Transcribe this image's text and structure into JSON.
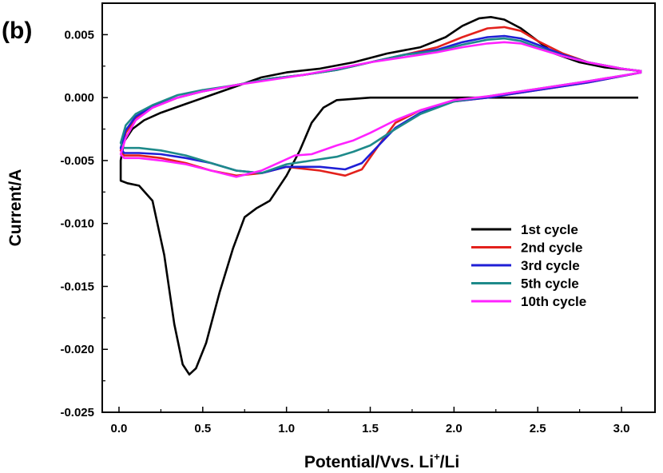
{
  "panel_label": "(b)",
  "chart_data": {
    "type": "line",
    "title": "",
    "xlabel": "Potential/Vvs. Li",
    "xlabel_sup": "+",
    "xlabel_tail": "/Li",
    "ylabel": "Current/A",
    "xlim": [
      -0.1,
      3.2
    ],
    "ylim": [
      -0.025,
      0.0075
    ],
    "x_ticks": [
      0.0,
      0.5,
      1.0,
      1.5,
      2.0,
      2.5,
      3.0
    ],
    "x_tick_labels": [
      "0.0",
      "0.5",
      "1.0",
      "1.5",
      "2.0",
      "2.5",
      "3.0"
    ],
    "y_ticks": [
      0.005,
      0.0,
      -0.005,
      -0.01,
      -0.015,
      -0.02,
      -0.025
    ],
    "y_tick_labels": [
      "0.005",
      "0.000",
      "-0.005",
      "-0.010",
      "-0.015",
      "-0.020",
      "-0.025"
    ],
    "grid": false,
    "legend_position": "lower-right",
    "series": [
      {
        "name": "1st cycle",
        "color": "#000000",
        "x": [
          3.1,
          2.8,
          2.5,
          2.0,
          1.5,
          1.3,
          1.22,
          1.15,
          1.08,
          1.0,
          0.9,
          0.82,
          0.75,
          0.68,
          0.6,
          0.52,
          0.46,
          0.42,
          0.38,
          0.33,
          0.27,
          0.2,
          0.12,
          0.05,
          0.01,
          0.01,
          0.03,
          0.08,
          0.15,
          0.25,
          0.4,
          0.55,
          0.7,
          0.85,
          1.0,
          1.2,
          1.4,
          1.6,
          1.8,
          1.95,
          2.05,
          2.15,
          2.22,
          2.3,
          2.4,
          2.5,
          2.6,
          2.75,
          2.9,
          3.05,
          3.12
        ],
        "y": [
          0.0,
          0.0,
          0.0,
          0.0,
          0.0,
          -0.0002,
          -0.0008,
          -0.002,
          -0.0042,
          -0.0062,
          -0.0082,
          -0.0088,
          -0.0095,
          -0.012,
          -0.0155,
          -0.0195,
          -0.0215,
          -0.022,
          -0.0212,
          -0.018,
          -0.0125,
          -0.0082,
          -0.007,
          -0.0068,
          -0.0066,
          -0.005,
          -0.0035,
          -0.0025,
          -0.0018,
          -0.0012,
          -0.0005,
          0.0002,
          0.0009,
          0.0016,
          0.002,
          0.0023,
          0.0028,
          0.0035,
          0.004,
          0.0048,
          0.0057,
          0.0063,
          0.0064,
          0.0062,
          0.0055,
          0.0045,
          0.0035,
          0.0028,
          0.0024,
          0.0022,
          0.0021
        ]
      },
      {
        "name": "2nd cycle",
        "color": "#e3211c",
        "x": [
          3.12,
          2.8,
          2.5,
          2.2,
          2.0,
          1.8,
          1.65,
          1.55,
          1.45,
          1.35,
          1.2,
          1.0,
          0.85,
          0.7,
          0.55,
          0.4,
          0.25,
          0.12,
          0.03,
          0.01,
          0.04,
          0.1,
          0.2,
          0.35,
          0.5,
          0.7,
          0.9,
          1.1,
          1.3,
          1.5,
          1.7,
          1.9,
          2.05,
          2.2,
          2.3,
          2.4,
          2.5,
          2.65,
          2.8,
          3.0,
          3.12
        ],
        "y": [
          0.002,
          0.0012,
          0.0006,
          0.0,
          -0.0003,
          -0.001,
          -0.002,
          -0.0038,
          -0.0057,
          -0.0062,
          -0.0058,
          -0.0055,
          -0.006,
          -0.0062,
          -0.0058,
          -0.0052,
          -0.0048,
          -0.0046,
          -0.0046,
          -0.0042,
          -0.0028,
          -0.0016,
          -0.0008,
          0.0,
          0.0005,
          0.001,
          0.0015,
          0.0018,
          0.0022,
          0.0028,
          0.0034,
          0.004,
          0.0048,
          0.0055,
          0.0056,
          0.0053,
          0.0045,
          0.0035,
          0.0028,
          0.0023,
          0.0021
        ]
      },
      {
        "name": "3rd cycle",
        "color": "#1f1fd6",
        "x": [
          3.12,
          2.8,
          2.5,
          2.2,
          2.0,
          1.8,
          1.65,
          1.55,
          1.45,
          1.35,
          1.2,
          1.0,
          0.85,
          0.7,
          0.55,
          0.4,
          0.25,
          0.12,
          0.03,
          0.01,
          0.04,
          0.1,
          0.2,
          0.35,
          0.5,
          0.7,
          0.9,
          1.1,
          1.3,
          1.5,
          1.7,
          1.9,
          2.05,
          2.2,
          2.3,
          2.4,
          2.5,
          2.65,
          2.8,
          3.0,
          3.12
        ],
        "y": [
          0.002,
          0.0012,
          0.0006,
          0.0,
          -0.0003,
          -0.0012,
          -0.0024,
          -0.0038,
          -0.0052,
          -0.0057,
          -0.0055,
          -0.0055,
          -0.006,
          -0.0058,
          -0.0052,
          -0.0048,
          -0.0045,
          -0.0044,
          -0.0044,
          -0.004,
          -0.0026,
          -0.0015,
          -0.0007,
          0.0,
          0.0005,
          0.001,
          0.0015,
          0.0018,
          0.0022,
          0.0028,
          0.0034,
          0.0038,
          0.0044,
          0.0048,
          0.0049,
          0.0047,
          0.0042,
          0.0034,
          0.0028,
          0.0023,
          0.0021
        ]
      },
      {
        "name": "5th cycle",
        "color": "#1e8a8a",
        "x": [
          3.12,
          2.8,
          2.5,
          2.2,
          2.0,
          1.8,
          1.65,
          1.5,
          1.4,
          1.3,
          1.15,
          1.0,
          0.85,
          0.7,
          0.55,
          0.4,
          0.25,
          0.12,
          0.03,
          0.01,
          0.04,
          0.1,
          0.2,
          0.35,
          0.5,
          0.7,
          0.9,
          1.1,
          1.3,
          1.5,
          1.7,
          1.9,
          2.05,
          2.2,
          2.3,
          2.4,
          2.5,
          2.65,
          2.8,
          3.0,
          3.12
        ],
        "y": [
          0.002,
          0.0013,
          0.0007,
          0.0001,
          -0.0003,
          -0.0013,
          -0.0025,
          -0.0038,
          -0.0043,
          -0.0047,
          -0.005,
          -0.0053,
          -0.006,
          -0.0058,
          -0.0052,
          -0.0046,
          -0.0042,
          -0.004,
          -0.004,
          -0.0036,
          -0.0022,
          -0.0013,
          -0.0006,
          0.0002,
          0.0006,
          0.001,
          0.0015,
          0.0018,
          0.0022,
          0.0028,
          0.0034,
          0.0037,
          0.0042,
          0.0046,
          0.0047,
          0.0045,
          0.004,
          0.0033,
          0.0028,
          0.0023,
          0.0021
        ]
      },
      {
        "name": "10th cycle",
        "color": "#ff22ff",
        "x": [
          3.12,
          2.8,
          2.5,
          2.2,
          2.0,
          1.8,
          1.65,
          1.5,
          1.4,
          1.3,
          1.15,
          1.05,
          0.95,
          0.85,
          0.7,
          0.55,
          0.4,
          0.25,
          0.12,
          0.03,
          0.01,
          0.04,
          0.1,
          0.2,
          0.35,
          0.5,
          0.7,
          0.9,
          1.1,
          1.3,
          1.5,
          1.7,
          1.9,
          2.05,
          2.2,
          2.3,
          2.4,
          2.5,
          2.65,
          2.8,
          3.0,
          3.12
        ],
        "y": [
          0.002,
          0.0013,
          0.0007,
          0.0001,
          -0.0002,
          -0.001,
          -0.0018,
          -0.0028,
          -0.0034,
          -0.0038,
          -0.0045,
          -0.0046,
          -0.0052,
          -0.0058,
          -0.0063,
          -0.0058,
          -0.0053,
          -0.005,
          -0.0048,
          -0.0048,
          -0.0045,
          -0.0032,
          -0.0018,
          -0.0008,
          0.0,
          0.0005,
          0.001,
          0.0014,
          0.0018,
          0.0023,
          0.0028,
          0.0032,
          0.0036,
          0.004,
          0.0043,
          0.0044,
          0.0043,
          0.0039,
          0.0033,
          0.0028,
          0.0023,
          0.0021
        ]
      }
    ]
  }
}
